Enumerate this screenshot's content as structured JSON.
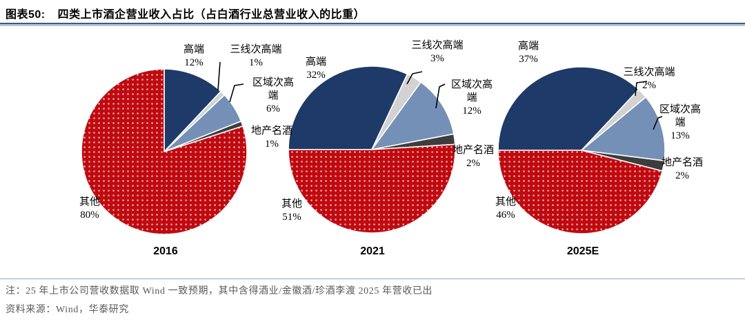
{
  "header": {
    "figure_label": "图表50:",
    "title": "四类上市酒企营业收入占比（占白酒行业总营业收入的比重）"
  },
  "chart_data": {
    "type": "pie",
    "title": "四类上市酒企营业收入占比（占白酒行业总营业收入的比重）",
    "unit": "%",
    "legend_position": "none",
    "categories": [
      "高端",
      "三线次高端",
      "区域次高端",
      "地产名酒",
      "其他"
    ],
    "colors": [
      "#1D3A68",
      "#D2D2D2",
      "#7590B6",
      "#3D3D3D",
      "#C00A0F"
    ],
    "pattern_slice": "其他",
    "pattern": {
      "base": "#C00A0F",
      "dot": "#FFFFFF"
    },
    "pies": [
      {
        "year": "2016",
        "values": [
          12,
          1,
          6,
          1,
          80
        ],
        "start_angle_deg": 0,
        "labels": [
          "高端\n12%",
          "三线次高端\n1%",
          "区域次高\n端\n6%",
          "地产名酒\n1%",
          "其他\n80%"
        ]
      },
      {
        "year": "2021",
        "values": [
          32,
          3,
          12,
          2,
          51
        ],
        "start_angle_deg": 270,
        "labels": [
          "高端\n32%",
          "三线次高端\n3%",
          "区域次高\n端\n12%",
          "地产名酒\n2%",
          "其他\n51%"
        ]
      },
      {
        "year": "2025E",
        "values": [
          37,
          2,
          13,
          2,
          46
        ],
        "start_angle_deg": 270,
        "labels": [
          "高端\n37%",
          "三线次高端\n2%",
          "区域次高\n端\n13%",
          "地产名酒\n2%",
          "其他\n46%"
        ]
      }
    ]
  },
  "notes": {
    "note": "注：25 年上市公司营收数据取 Wind 一致预期，其中含得酒业/金徽酒/珍酒李渡 2025 年营收已出",
    "source": "资料来源：Wind，华泰研究"
  }
}
